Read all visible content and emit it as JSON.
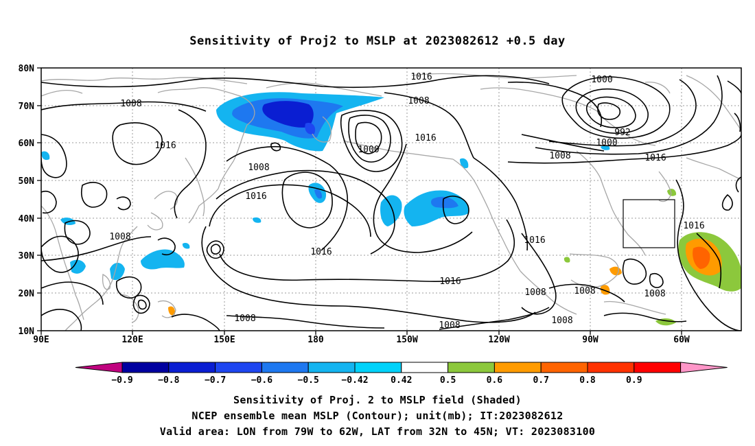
{
  "title": "Sensitivity of Proj2 to MSLP at 2023082612 +0.5 day",
  "map": {
    "lat_ticks": [
      "80N",
      "70N",
      "60N",
      "50N",
      "40N",
      "30N",
      "20N",
      "10N"
    ],
    "lon_ticks": [
      "90E",
      "120E",
      "150E",
      "180",
      "150W",
      "120W",
      "90W",
      "60W"
    ],
    "lon_range": [
      "90E",
      "45W"
    ],
    "lat_range": [
      "10N",
      "80N"
    ],
    "grid": "dotted",
    "contour_labels": [
      {
        "id": "c1",
        "text": "1016"
      },
      {
        "id": "c2",
        "text": "1008"
      },
      {
        "id": "c3",
        "text": "1016"
      },
      {
        "id": "c4",
        "text": "1008"
      },
      {
        "id": "c5",
        "text": "1000"
      },
      {
        "id": "c6",
        "text": "1016"
      },
      {
        "id": "c7",
        "text": "1000"
      },
      {
        "id": "c8",
        "text": "992"
      },
      {
        "id": "c9",
        "text": "1000"
      },
      {
        "id": "c10",
        "text": "1008"
      },
      {
        "id": "c11",
        "text": "1016"
      },
      {
        "id": "c12",
        "text": "1008"
      },
      {
        "id": "c13",
        "text": "1016"
      },
      {
        "id": "c14",
        "text": "1008"
      },
      {
        "id": "c15",
        "text": "1016"
      },
      {
        "id": "c16",
        "text": "1016"
      },
      {
        "id": "c17",
        "text": "1016"
      },
      {
        "id": "c18",
        "text": "1016"
      },
      {
        "id": "c19",
        "text": "1008"
      },
      {
        "id": "c20",
        "text": "1008"
      },
      {
        "id": "c21",
        "text": "1008"
      },
      {
        "id": "c22",
        "text": "1008"
      },
      {
        "id": "c23",
        "text": "1008"
      },
      {
        "id": "c24",
        "text": "1008"
      }
    ],
    "valid_area": {
      "lon": [
        "79W",
        "62W"
      ],
      "lat": [
        "32N",
        "45N"
      ]
    }
  },
  "colorbar": {
    "labels": [
      "-0.9",
      "-0.8",
      "-0.7",
      "-0.6",
      "-0.5",
      "-0.42",
      "0.42",
      "0.5",
      "0.6",
      "0.7",
      "0.8",
      "0.9"
    ],
    "colors": [
      "#c0037f",
      "#0000a0",
      "#0a1ed2",
      "#1e46f0",
      "#1e78f0",
      "#14b4f0",
      "#00d2fa",
      "#ffffff",
      "#8cc83c",
      "#ff9b00",
      "#ff6400",
      "#ff3200",
      "#ff0000",
      "#ff96c8"
    ]
  },
  "captions": {
    "line1": "Sensitivity of Proj. 2 to MSLP field (Shaded)",
    "line2": "NCEP ensemble mean MSLP (Contour); unit(mb); IT:2023082612",
    "line3": "Valid area: LON from 79W to 62W, LAT from 32N to 45N; VT: 2023083100"
  }
}
